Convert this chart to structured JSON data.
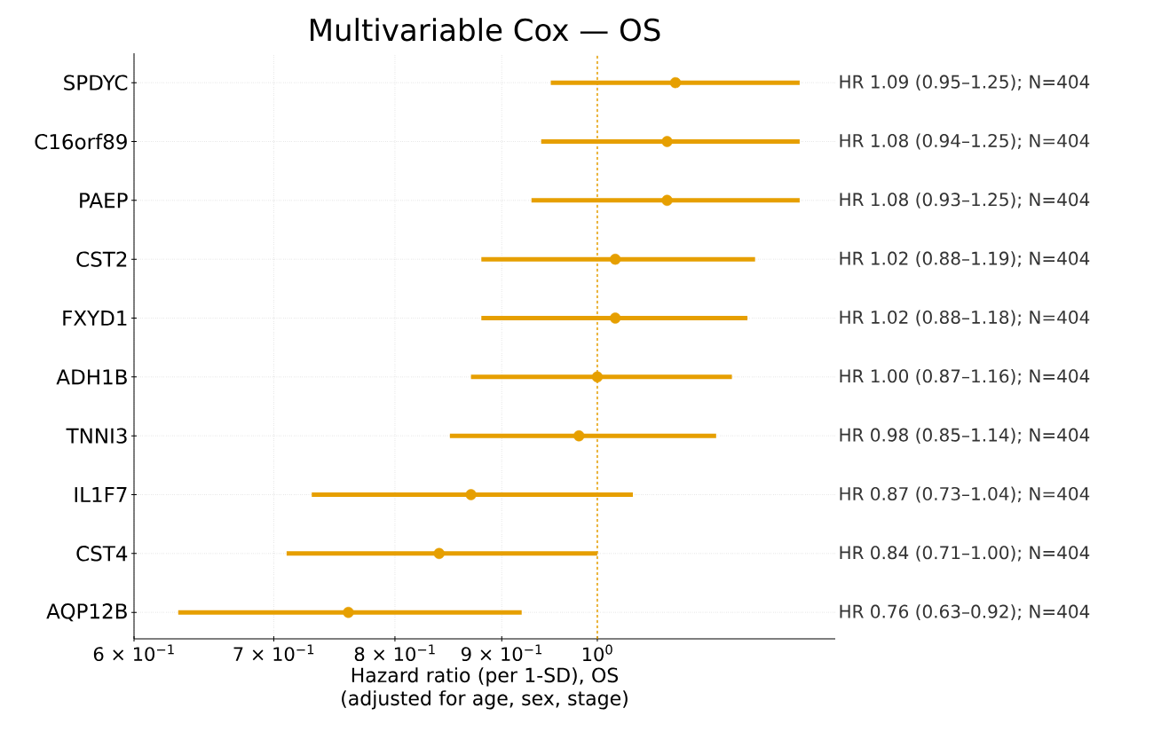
{
  "chart_data": {
    "type": "scatter",
    "orientation": "horizontal",
    "title": "Multivariable Cox — OS",
    "xlabel": "Hazard ratio (per 1-SD), OS (adjusted for age, sex, stage)",
    "categories": [
      "SPDYC",
      "C16orf89",
      "PAEP",
      "CST2",
      "FXYD1",
      "ADH1B",
      "TNNI3",
      "IL1F7",
      "CST4",
      "AQP12B"
    ],
    "values": [
      1.09,
      1.08,
      1.08,
      1.02,
      1.02,
      1.0,
      0.98,
      0.87,
      0.84,
      0.76
    ],
    "errors": [
      [
        0.95,
        1.25
      ],
      [
        0.94,
        1.25
      ],
      [
        0.93,
        1.25
      ],
      [
        0.88,
        1.19
      ],
      [
        0.88,
        1.18
      ],
      [
        0.87,
        1.16
      ],
      [
        0.85,
        1.14
      ],
      [
        0.73,
        1.04
      ],
      [
        0.71,
        1.0
      ],
      [
        0.63,
        0.92
      ]
    ],
    "value_labels": [
      "HR 1.09 (0.95–1.25); N=404",
      "HR 1.08 (0.94–1.25); N=404",
      "HR 1.08 (0.93–1.25); N=404",
      "HR 1.02 (0.88–1.19); N=404",
      "HR 1.02 (0.88–1.18); N=404",
      "HR 1.00 (0.87–1.16); N=404",
      "HR 0.98 (0.85–1.14); N=404",
      "HR 0.87 (0.73–1.04); N=404",
      "HR 0.84 (0.71–1.00); N=404",
      "HR 0.76 (0.63–0.92); N=404"
    ],
    "color": "#e69f00",
    "marker": "circle",
    "log": "x",
    "grid": true,
    "xlim": [
      0.6,
      1.3
    ],
    "xticks": [
      {
        "value": 0.6,
        "label": "6 × 10$^{−1}$"
      },
      {
        "value": 0.7,
        "label": "7 × 10$^{−1}$"
      },
      {
        "value": 0.8,
        "label": "8 × 10$^{−1}$"
      },
      {
        "value": 0.9,
        "label": "9 × 10$^{−1}$"
      },
      {
        "value": 1,
        "label": "10$^{0}$"
      }
    ],
    "ref_lines": [
      {
        "axis": "x",
        "value": 1,
        "color": "#e69f00",
        "line_style": "dashed"
      }
    ]
  }
}
